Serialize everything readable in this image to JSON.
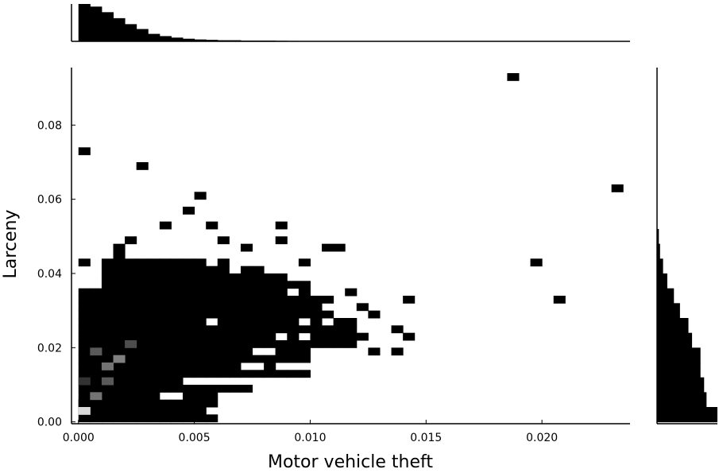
{
  "chart_data": {
    "type": "heatmap",
    "subtype": "2d-histogram-with-marginal-histograms",
    "xlabel": "Motor vehicle theft",
    "ylabel": "Larceny",
    "xlim": [
      -0.0003,
      0.0238
    ],
    "ylim": [
      -0.0005,
      0.0955
    ],
    "x_ticks": [
      0.0,
      0.005,
      0.01,
      0.015,
      0.02
    ],
    "x_tick_labels": [
      "0.000",
      "0.005",
      "0.010",
      "0.015",
      "0.020"
    ],
    "y_ticks": [
      0.0,
      0.02,
      0.04,
      0.06,
      0.08
    ],
    "y_tick_labels": [
      "0.00",
      "0.02",
      "0.04",
      "0.06",
      "0.08"
    ],
    "grid": false,
    "bin_width_x": 0.0005,
    "bin_height_y": 0.002,
    "color_scale": "greys: dense bins lighter, sparse bins black",
    "bins": [
      {
        "x": 0.0,
        "y": 0.072
      },
      {
        "x": 0.0025,
        "y": 0.068
      },
      {
        "x": 0.0185,
        "y": 0.092
      },
      {
        "x": 0.023,
        "y": 0.062
      },
      {
        "x": 0.0195,
        "y": 0.042
      },
      {
        "x": 0.0205,
        "y": 0.032
      },
      {
        "x": 0.0,
        "y": 0.042
      },
      {
        "x": 0.0015,
        "y": 0.044
      },
      {
        "x": 0.0015,
        "y": 0.046
      },
      {
        "x": 0.002,
        "y": 0.048
      },
      {
        "x": 0.0035,
        "y": 0.052
      },
      {
        "x": 0.0045,
        "y": 0.056
      },
      {
        "x": 0.005,
        "y": 0.06
      },
      {
        "x": 0.0055,
        "y": 0.052
      },
      {
        "x": 0.006,
        "y": 0.048
      },
      {
        "x": 0.007,
        "y": 0.046
      },
      {
        "x": 0.0085,
        "y": 0.052
      },
      {
        "x": 0.0085,
        "y": 0.048
      },
      {
        "x": 0.0105,
        "y": 0.046
      },
      {
        "x": 0.011,
        "y": 0.046
      },
      {
        "x": 0.0095,
        "y": 0.042
      },
      {
        "x": 0.0115,
        "y": 0.034
      },
      {
        "x": 0.012,
        "y": 0.03
      },
      {
        "x": 0.0125,
        "y": 0.028
      },
      {
        "x": 0.0135,
        "y": 0.024
      },
      {
        "x": 0.014,
        "y": 0.032
      },
      {
        "x": 0.0115,
        "y": 0.022
      },
      {
        "x": 0.012,
        "y": 0.022
      },
      {
        "x": 0.0125,
        "y": 0.018
      },
      {
        "x": 0.0135,
        "y": 0.018
      },
      {
        "x": 0.014,
        "y": 0.022
      },
      {
        "x": 0.0075,
        "y": 0.022
      },
      {
        "x": 0.008,
        "y": 0.024
      },
      {
        "x": 0.0085,
        "y": 0.018
      },
      {
        "x": 0.009,
        "y": 0.018
      },
      {
        "x": 0.005,
        "y": 0.002
      },
      {
        "x": 0.0045,
        "y": 0.002
      },
      {
        "x": 0.003,
        "y": 0.002
      },
      {
        "x": 0.0025,
        "y": 0.002
      },
      {
        "x": 0.0005,
        "y": 0.006
      },
      {
        "x": 0.0,
        "y": 0.004
      }
    ],
    "dense_region_bins": [
      {
        "x": 0.0,
        "y": 0.002,
        "level": 0.85
      },
      {
        "x": 0.0005,
        "y": 0.006,
        "level": 0.45
      },
      {
        "x": 0.001,
        "y": 0.014,
        "level": 0.45
      },
      {
        "x": 0.0005,
        "y": 0.018,
        "level": 0.35
      },
      {
        "x": 0.0015,
        "y": 0.016,
        "level": 0.5
      },
      {
        "x": 0.002,
        "y": 0.02,
        "level": 0.3
      },
      {
        "x": 0.001,
        "y": 0.01,
        "level": 0.35
      },
      {
        "x": 0.0,
        "y": 0.01,
        "level": 0.2
      }
    ],
    "marginal_x_histogram": {
      "bin_width": 0.0005,
      "relative_heights": [
        1.0,
        0.93,
        0.78,
        0.62,
        0.46,
        0.33,
        0.2,
        0.14,
        0.1,
        0.07,
        0.05,
        0.04,
        0.03,
        0.03,
        0.02,
        0.02,
        0.02,
        0.015,
        0.012,
        0.01,
        0.01
      ]
    },
    "marginal_y_histogram": {
      "bin_height": 0.004,
      "relative_lengths": [
        1.0,
        0.82,
        0.78,
        0.72,
        0.72,
        0.58,
        0.52,
        0.38,
        0.28,
        0.17,
        0.1,
        0.05,
        0.03
      ]
    }
  }
}
